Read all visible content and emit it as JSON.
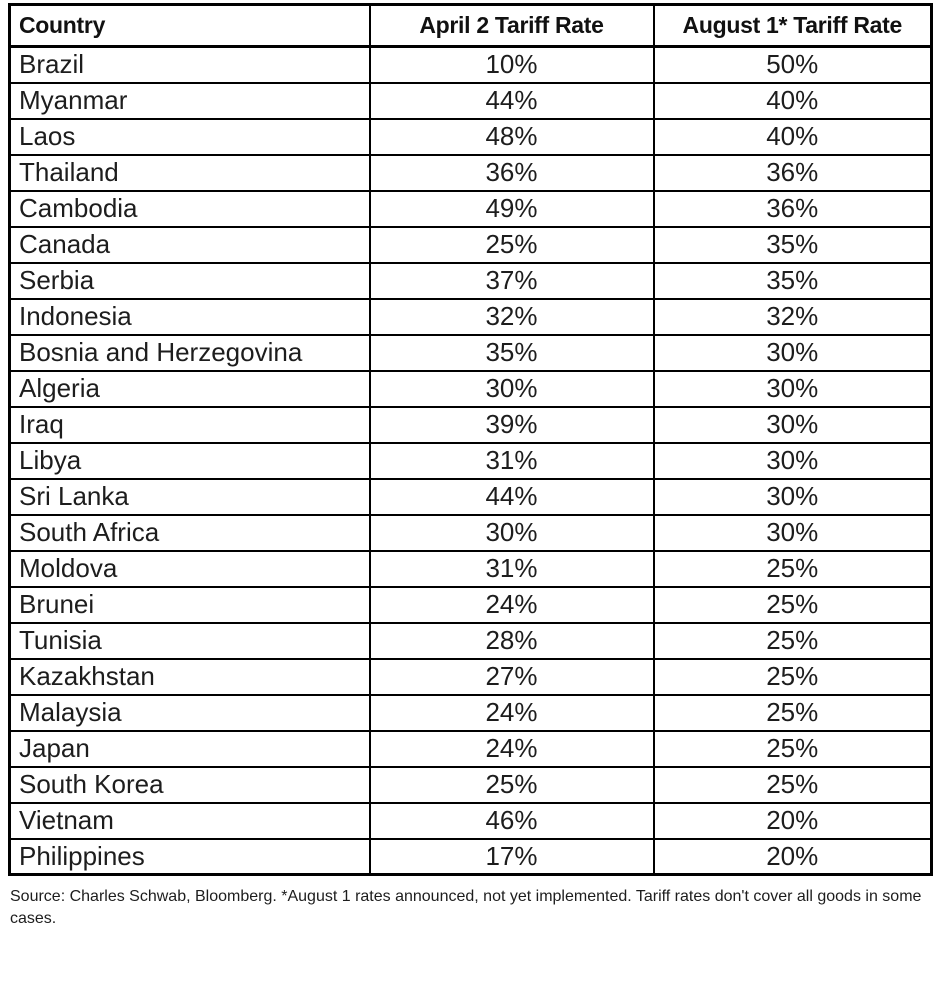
{
  "chart_data": {
    "type": "table",
    "columns": [
      "Country",
      "April 2 Tariff Rate",
      "August 1* Tariff Rate"
    ],
    "rows": [
      [
        "Brazil",
        "10%",
        "50%"
      ],
      [
        "Myanmar",
        "44%",
        "40%"
      ],
      [
        "Laos",
        "48%",
        "40%"
      ],
      [
        "Thailand",
        "36%",
        "36%"
      ],
      [
        "Cambodia",
        "49%",
        "36%"
      ],
      [
        "Canada",
        "25%",
        "35%"
      ],
      [
        "Serbia",
        "37%",
        "35%"
      ],
      [
        "Indonesia",
        "32%",
        "32%"
      ],
      [
        "Bosnia and Herzegovina",
        "35%",
        "30%"
      ],
      [
        "Algeria",
        "30%",
        "30%"
      ],
      [
        "Iraq",
        "39%",
        "30%"
      ],
      [
        "Libya",
        "31%",
        "30%"
      ],
      [
        "Sri Lanka",
        "44%",
        "30%"
      ],
      [
        "South Africa",
        "30%",
        "30%"
      ],
      [
        "Moldova",
        "31%",
        "25%"
      ],
      [
        "Brunei",
        "24%",
        "25%"
      ],
      [
        "Tunisia",
        "28%",
        "25%"
      ],
      [
        "Kazakhstan",
        "27%",
        "25%"
      ],
      [
        "Malaysia",
        "24%",
        "25%"
      ],
      [
        "Japan",
        "24%",
        "25%"
      ],
      [
        "South Korea",
        "25%",
        "25%"
      ],
      [
        "Vietnam",
        "46%",
        "20%"
      ],
      [
        "Philippines",
        "17%",
        "20%"
      ]
    ],
    "title": "",
    "layout": {
      "grid": "full-borders",
      "header_bold": true
    }
  },
  "footnote": "Source: Charles Schwab, Bloomberg. *August 1 rates announced, not yet implemented. Tariff rates don't cover all goods in some cases.",
  "colors": {
    "border": "#000000",
    "text": "#1d1d1d",
    "background": "#ffffff"
  }
}
